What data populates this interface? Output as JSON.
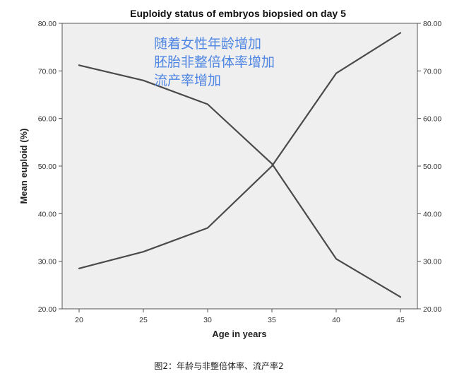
{
  "chart_data": {
    "type": "line",
    "title": "Euploidy status of embryos biopsied on day 5",
    "xlabel": "Age in years",
    "ylabel": "Mean euploid (%)",
    "x": [
      20,
      25,
      30,
      35,
      40,
      45
    ],
    "x_ticks": [
      "20",
      "25",
      "30",
      "35",
      "40",
      "45"
    ],
    "ylim": [
      20,
      80
    ],
    "y_ticks": [
      "20.00",
      "30.00",
      "40.00",
      "50.00",
      "60.00",
      "70.00",
      "80.00"
    ],
    "right_axis": true,
    "grid": false,
    "background": "#efefef",
    "line_color": "#4a4a4a",
    "series": [
      {
        "values": [
          71.2,
          68.0,
          63.0,
          50.5,
          30.5,
          22.5
        ]
      },
      {
        "values": [
          28.5,
          32.0,
          37.0,
          50.0,
          69.5,
          78.0
        ]
      }
    ],
    "annotations": {
      "color": "#4f86e3",
      "lines": [
        "随着女性年龄增加",
        "胚胎非整倍体率增加",
        "流产率增加"
      ]
    }
  },
  "caption": "图2：年龄与非整倍体率、流产率2"
}
